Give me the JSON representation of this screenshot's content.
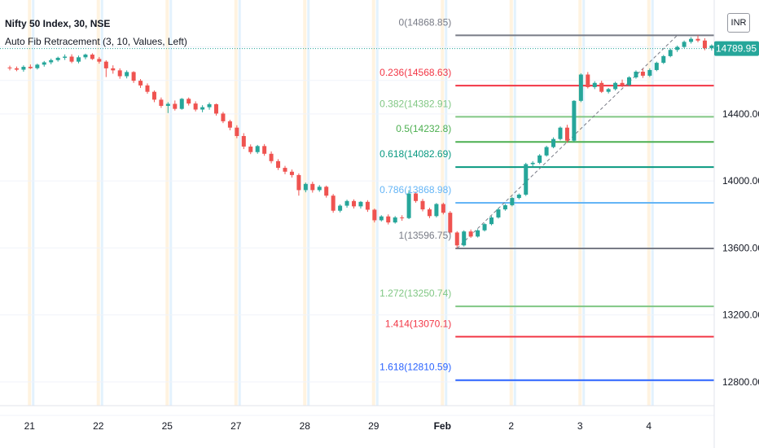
{
  "header": {
    "title": "Nifty 50 Index, 30, NSE",
    "indicator": "Auto Fib Retracement (3, 10, Values, Left)",
    "currency": "INR"
  },
  "price_label": {
    "value": "14789.95",
    "price": 14789.95,
    "color": "#26a69a"
  },
  "chart_data": {
    "type": "candlestick",
    "ylim": [
      12600,
      15080
    ],
    "y_ticks": [
      {
        "label": "12800.00",
        "value": 12800
      },
      {
        "label": "13200.00",
        "value": 13200
      },
      {
        "label": "13600.00",
        "value": 13600
      },
      {
        "label": "14000.00",
        "value": 14000
      },
      {
        "label": "14400.00",
        "value": 14400
      }
    ],
    "x_ticks": [
      {
        "label": "21",
        "index": 5
      },
      {
        "label": "22",
        "index": 15
      },
      {
        "label": "25",
        "index": 25
      },
      {
        "label": "27",
        "index": 35
      },
      {
        "label": "28",
        "index": 45
      },
      {
        "label": "29",
        "index": 55
      },
      {
        "label": "Feb",
        "index": 65
      },
      {
        "label": "2",
        "index": 75
      },
      {
        "label": "3",
        "index": 85
      },
      {
        "label": "4",
        "index": 95
      }
    ],
    "candles": [
      [
        14677,
        14688,
        14660,
        14672
      ],
      [
        14672,
        14683,
        14655,
        14664
      ],
      [
        14664,
        14690,
        14652,
        14681
      ],
      [
        14681,
        14695,
        14668,
        14673
      ],
      [
        14673,
        14700,
        14665,
        14694
      ],
      [
        14694,
        14716,
        14682,
        14708
      ],
      [
        14708,
        14730,
        14696,
        14721
      ],
      [
        14721,
        14742,
        14712,
        14735
      ],
      [
        14735,
        14755,
        14722,
        14742
      ],
      [
        14742,
        14756,
        14703,
        14712
      ],
      [
        14712,
        14748,
        14702,
        14738
      ],
      [
        14738,
        14760,
        14726,
        14754
      ],
      [
        14754,
        14762,
        14722,
        14728
      ],
      [
        14728,
        14740,
        14700,
        14712
      ],
      [
        14712,
        14720,
        14620,
        14672
      ],
      [
        14672,
        14690,
        14640,
        14660
      ],
      [
        14660,
        14672,
        14610,
        14625
      ],
      [
        14625,
        14660,
        14612,
        14650
      ],
      [
        14650,
        14655,
        14585,
        14598
      ],
      [
        14598,
        14608,
        14555,
        14570
      ],
      [
        14570,
        14582,
        14520,
        14532
      ],
      [
        14532,
        14540,
        14470,
        14485
      ],
      [
        14485,
        14498,
        14436,
        14448
      ],
      [
        14448,
        14470,
        14405,
        14460
      ],
      [
        14460,
        14480,
        14420,
        14430
      ],
      [
        14430,
        14495,
        14425,
        14490
      ],
      [
        14490,
        14498,
        14450,
        14462
      ],
      [
        14462,
        14475,
        14415,
        14426
      ],
      [
        14426,
        14452,
        14410,
        14440
      ],
      [
        14440,
        14468,
        14425,
        14458
      ],
      [
        14458,
        14462,
        14390,
        14402
      ],
      [
        14402,
        14412,
        14345,
        14356
      ],
      [
        14356,
        14365,
        14302,
        14318
      ],
      [
        14318,
        14332,
        14255,
        14268
      ],
      [
        14268,
        14285,
        14190,
        14205
      ],
      [
        14205,
        14218,
        14160,
        14172
      ],
      [
        14172,
        14215,
        14162,
        14208
      ],
      [
        14208,
        14220,
        14150,
        14162
      ],
      [
        14162,
        14176,
        14105,
        14118
      ],
      [
        14118,
        14130,
        14065,
        14078
      ],
      [
        14078,
        14090,
        14040,
        14055
      ],
      [
        14055,
        14068,
        14020,
        14035
      ],
      [
        14035,
        14045,
        13912,
        13945
      ],
      [
        13945,
        13990,
        13932,
        13982
      ],
      [
        13982,
        13995,
        13930,
        13945
      ],
      [
        13945,
        13975,
        13935,
        13965
      ],
      [
        13965,
        13972,
        13900,
        13912
      ],
      [
        13912,
        13922,
        13810,
        13822
      ],
      [
        13822,
        13860,
        13812,
        13852
      ],
      [
        13852,
        13888,
        13840,
        13880
      ],
      [
        13880,
        13890,
        13835,
        13848
      ],
      [
        13848,
        13880,
        13835,
        13875
      ],
      [
        13875,
        13885,
        13815,
        13828
      ],
      [
        13828,
        13835,
        13752,
        13765
      ],
      [
        13765,
        13795,
        13758,
        13788
      ],
      [
        13788,
        13800,
        13740,
        13752
      ],
      [
        13752,
        13790,
        13745,
        13782
      ],
      [
        13782,
        13795,
        13762,
        13778
      ],
      [
        13778,
        13945,
        13772,
        13925
      ],
      [
        13925,
        13935,
        13870,
        13880
      ],
      [
        13880,
        13892,
        13818,
        13830
      ],
      [
        13830,
        13840,
        13778,
        13790
      ],
      [
        13790,
        13868,
        13782,
        13862
      ],
      [
        13862,
        13870,
        13800,
        13810
      ],
      [
        13810,
        13820,
        13680,
        13692
      ],
      [
        13692,
        13700,
        13600,
        13615
      ],
      [
        13615,
        13705,
        13608,
        13698
      ],
      [
        13698,
        13710,
        13660,
        13668
      ],
      [
        13668,
        13712,
        13662,
        13705
      ],
      [
        13705,
        13748,
        13698,
        13742
      ],
      [
        13742,
        13790,
        13735,
        13782
      ],
      [
        13782,
        13840,
        13775,
        13830
      ],
      [
        13830,
        13862,
        13822,
        13855
      ],
      [
        13855,
        13905,
        13848,
        13898
      ],
      [
        13898,
        13925,
        13890,
        13918
      ],
      [
        13918,
        14108,
        13910,
        14100
      ],
      [
        14100,
        14118,
        14085,
        14108
      ],
      [
        14108,
        14160,
        14100,
        14152
      ],
      [
        14152,
        14210,
        14145,
        14202
      ],
      [
        14202,
        14260,
        14195,
        14250
      ],
      [
        14250,
        14325,
        14242,
        14318
      ],
      [
        14318,
        14335,
        14228,
        14240
      ],
      [
        14240,
        14482,
        14232,
        14478
      ],
      [
        14478,
        14642,
        14470,
        14635
      ],
      [
        14635,
        14650,
        14552,
        14560
      ],
      [
        14560,
        14595,
        14548,
        14585
      ],
      [
        14585,
        14598,
        14525,
        14532
      ],
      [
        14532,
        14555,
        14522,
        14548
      ],
      [
        14548,
        14592,
        14540,
        14585
      ],
      [
        14585,
        14605,
        14560,
        14572
      ],
      [
        14572,
        14625,
        14565,
        14618
      ],
      [
        14618,
        14660,
        14610,
        14652
      ],
      [
        14652,
        14670,
        14615,
        14628
      ],
      [
        14628,
        14672,
        14620,
        14662
      ],
      [
        14662,
        14712,
        14655,
        14705
      ],
      [
        14705,
        14752,
        14698,
        14745
      ],
      [
        14745,
        14790,
        14738,
        14782
      ],
      [
        14782,
        14808,
        14770,
        14800
      ],
      [
        14800,
        14838,
        14792,
        14830
      ],
      [
        14830,
        14858,
        14820,
        14848
      ],
      [
        14848,
        14869,
        14828,
        14838
      ],
      [
        14838,
        14852,
        14780,
        14792
      ],
      [
        14792,
        14815,
        14778,
        14808
      ],
      [
        14808,
        14822,
        14782,
        14790
      ]
    ],
    "fib_levels": [
      {
        "ratio": "0",
        "price": 14868.85,
        "label": "0(14868.85)",
        "color": "#787b86"
      },
      {
        "ratio": "0.236",
        "price": 14568.63,
        "label": "0.236(14568.63)",
        "color": "#f23645"
      },
      {
        "ratio": "0.382",
        "price": 14382.91,
        "label": "0.382(14382.91)",
        "color": "#81c784"
      },
      {
        "ratio": "0.5",
        "price": 14232.8,
        "label": "0.5(14232.8)",
        "color": "#4caf50"
      },
      {
        "ratio": "0.618",
        "price": 14082.69,
        "label": "0.618(14082.69)",
        "color": "#089981"
      },
      {
        "ratio": "0.786",
        "price": 13868.98,
        "label": "0.786(13868.98)",
        "color": "#64b5f6"
      },
      {
        "ratio": "1",
        "price": 13596.75,
        "label": "1(13596.75)",
        "color": "#787b86"
      },
      {
        "ratio": "1.272",
        "price": 13250.74,
        "label": "1.272(13250.74)",
        "color": "#81c784"
      },
      {
        "ratio": "1.414",
        "price": 13070.1,
        "label": "1.414(13070.1)",
        "color": "#f23645"
      },
      {
        "ratio": "1.618",
        "price": 12810.59,
        "label": "1.618(12810.59)",
        "color": "#2962ff"
      }
    ],
    "fib_trend_line": {
      "from": {
        "index": 65,
        "price": 13596.75
      },
      "to": {
        "index": 97,
        "price": 14868.85
      }
    },
    "session_bands": [
      5,
      15,
      25,
      35,
      45,
      55,
      65,
      75,
      85,
      95
    ],
    "colors": {
      "up": "#26a69a",
      "down": "#ef5350",
      "grid": "#f0f3fa",
      "axis_text": "#131722",
      "band": "#fff3e0",
      "band2": "#e3f2fd"
    }
  }
}
